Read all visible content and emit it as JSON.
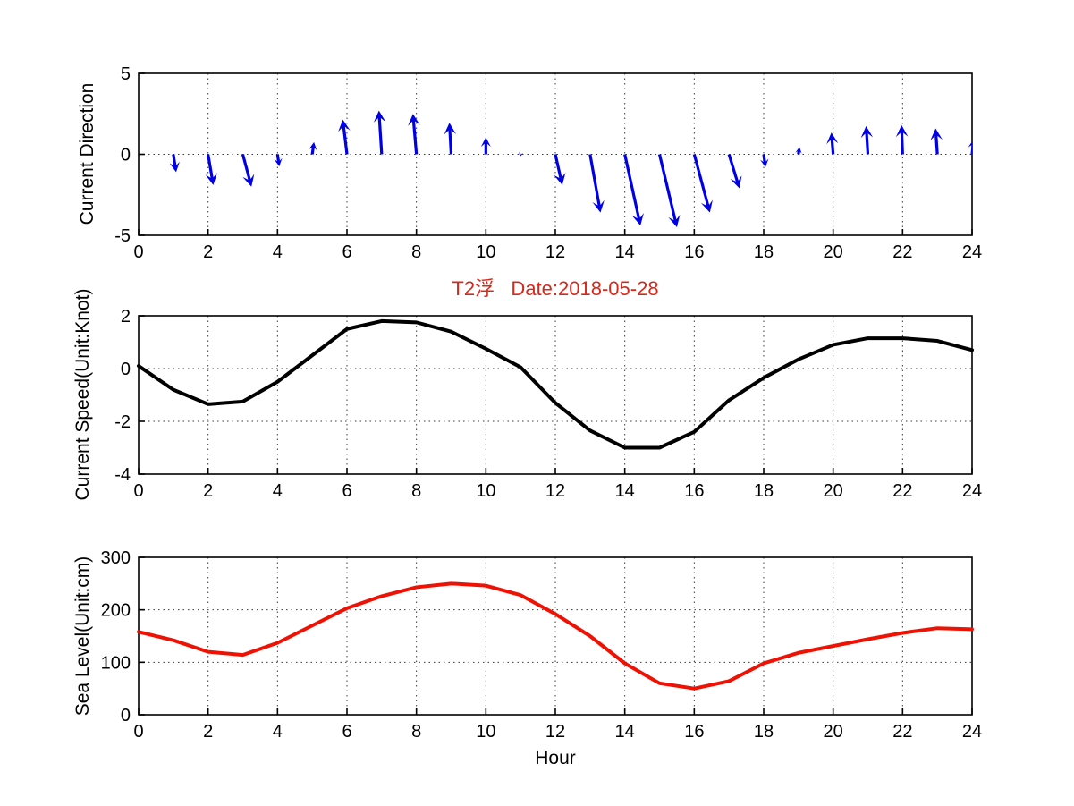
{
  "figure": {
    "background": "#ffffff",
    "xlabel": "Hour",
    "title": {
      "text": "T2浮   Date:2018-05-28",
      "color": "#d8281c"
    }
  },
  "chart_data": [
    {
      "type": "quiver",
      "name": "current-direction",
      "ylabel": "Current Direction",
      "xlim": [
        0,
        24
      ],
      "ylim": [
        -5,
        5
      ],
      "xticks": [
        0,
        2,
        4,
        6,
        8,
        10,
        12,
        14,
        16,
        18,
        20,
        22,
        24
      ],
      "yticks": [
        -5,
        0,
        5
      ],
      "grid": true,
      "color": "#0000e6",
      "arrows": [
        {
          "x": 1,
          "u": 0.08,
          "v": -1.1
        },
        {
          "x": 2,
          "u": 0.15,
          "v": -1.9
        },
        {
          "x": 3,
          "u": 0.25,
          "v": -2.0
        },
        {
          "x": 4,
          "u": 0.05,
          "v": -0.75
        },
        {
          "x": 5,
          "u": 0.05,
          "v": 0.75
        },
        {
          "x": 6,
          "u": -0.12,
          "v": 2.15
        },
        {
          "x": 7,
          "u": -0.08,
          "v": 2.7
        },
        {
          "x": 8,
          "u": -0.1,
          "v": 2.5
        },
        {
          "x": 9,
          "u": -0.05,
          "v": 1.95
        },
        {
          "x": 10,
          "u": 0.0,
          "v": 1.05
        },
        {
          "x": 11,
          "u": -0.02,
          "v": -0.15
        },
        {
          "x": 12,
          "u": 0.2,
          "v": -1.9
        },
        {
          "x": 13,
          "u": 0.3,
          "v": -3.6
        },
        {
          "x": 14,
          "u": 0.45,
          "v": -4.4
        },
        {
          "x": 15,
          "u": 0.5,
          "v": -4.5
        },
        {
          "x": 16,
          "u": 0.45,
          "v": -3.6
        },
        {
          "x": 17,
          "u": 0.3,
          "v": -2.1
        },
        {
          "x": 18,
          "u": 0.05,
          "v": -0.8
        },
        {
          "x": 19,
          "u": 0.03,
          "v": 0.45
        },
        {
          "x": 20,
          "u": -0.05,
          "v": 1.35
        },
        {
          "x": 21,
          "u": -0.05,
          "v": 1.75
        },
        {
          "x": 22,
          "u": -0.03,
          "v": 1.8
        },
        {
          "x": 23,
          "u": -0.05,
          "v": 1.6
        },
        {
          "x": 24,
          "u": 0.05,
          "v": 0.95
        }
      ]
    },
    {
      "type": "line",
      "name": "current-speed",
      "title": "T2浮   Date:2018-05-28",
      "ylabel": "Current Speed(Unit:Knot)",
      "xlim": [
        0,
        24
      ],
      "ylim": [
        -4,
        2
      ],
      "xticks": [
        0,
        2,
        4,
        6,
        8,
        10,
        12,
        14,
        16,
        18,
        20,
        22,
        24
      ],
      "yticks": [
        -4,
        -2,
        0,
        2
      ],
      "grid": true,
      "color": "#000000",
      "linewidth": 4,
      "x": [
        0,
        1,
        2,
        3,
        4,
        5,
        6,
        7,
        8,
        9,
        10,
        11,
        12,
        13,
        14,
        15,
        16,
        17,
        18,
        19,
        20,
        21,
        22,
        23,
        24
      ],
      "y": [
        0.1,
        -0.8,
        -1.35,
        -1.25,
        -0.5,
        0.5,
        1.5,
        1.8,
        1.75,
        1.4,
        0.75,
        0.05,
        -1.3,
        -2.35,
        -3.0,
        -3.0,
        -2.4,
        -1.2,
        -0.35,
        0.35,
        0.9,
        1.15,
        1.15,
        1.05,
        0.7
      ]
    },
    {
      "type": "line",
      "name": "sea-level",
      "ylabel": "Sea Level(Unit:cm)",
      "xlabel": "Hour",
      "xlim": [
        0,
        24
      ],
      "ylim": [
        0,
        300
      ],
      "xticks": [
        0,
        2,
        4,
        6,
        8,
        10,
        12,
        14,
        16,
        18,
        20,
        22,
        24
      ],
      "yticks": [
        0,
        100,
        200,
        300
      ],
      "grid": true,
      "color": "#ee1205",
      "linewidth": 4,
      "x": [
        0,
        1,
        2,
        3,
        4,
        5,
        6,
        7,
        8,
        9,
        10,
        11,
        12,
        13,
        14,
        15,
        16,
        17,
        18,
        19,
        20,
        21,
        22,
        23,
        24
      ],
      "y": [
        158,
        142,
        120,
        114,
        137,
        170,
        203,
        226,
        243,
        250,
        246,
        228,
        192,
        150,
        98,
        60,
        50,
        64,
        98,
        118,
        131,
        144,
        156,
        165,
        163
      ]
    }
  ]
}
